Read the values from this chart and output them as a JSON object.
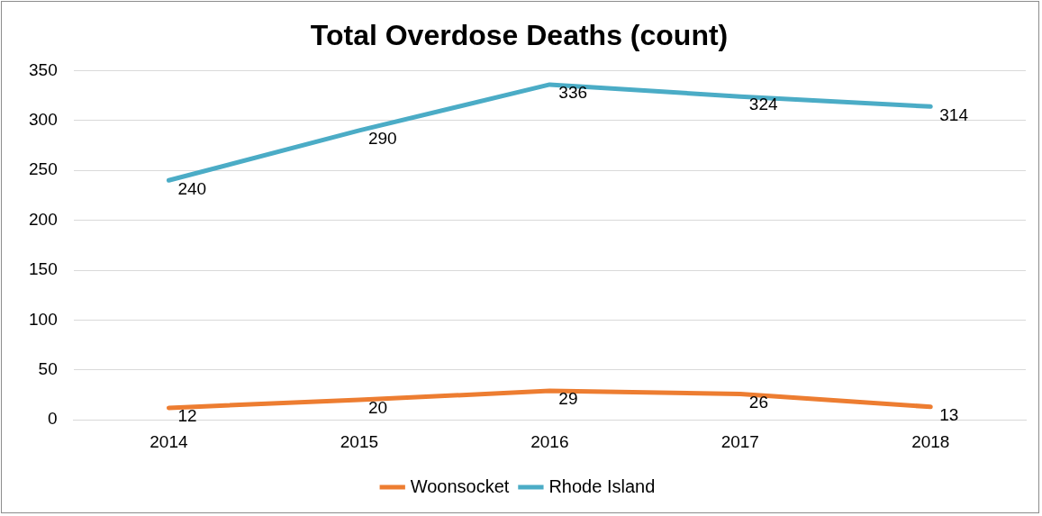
{
  "chart_data": {
    "type": "line",
    "title": "Total Overdose Deaths (count)",
    "categories": [
      "2014",
      "2015",
      "2016",
      "2017",
      "2018"
    ],
    "series": [
      {
        "name": "Woonsocket",
        "color": "#ed7d31",
        "values": [
          12,
          20,
          29,
          26,
          13
        ]
      },
      {
        "name": "Rhode Island",
        "color": "#4bacc6",
        "values": [
          240,
          290,
          336,
          324,
          314
        ]
      }
    ],
    "ylim": [
      0,
      350
    ],
    "yticks": [
      0,
      50,
      100,
      150,
      200,
      250,
      300,
      350
    ],
    "grid": "y",
    "legend": "bottom",
    "data_labels": true,
    "marker": "none",
    "line_style": "solid"
  }
}
